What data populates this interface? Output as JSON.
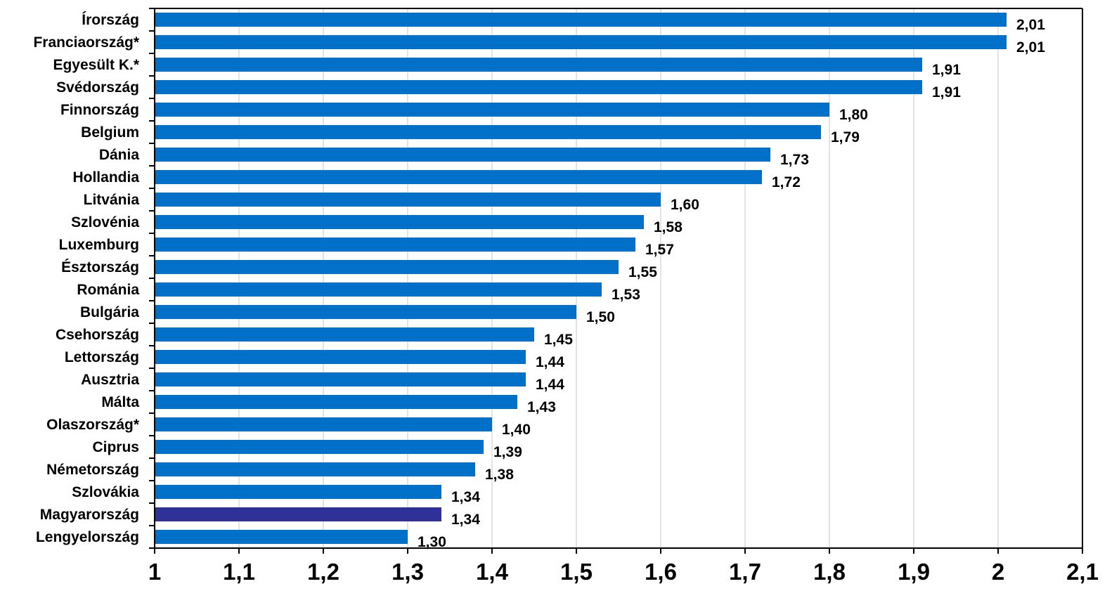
{
  "chart_data": {
    "type": "bar",
    "orientation": "horizontal",
    "title": "",
    "xlabel": "",
    "ylabel": "",
    "xlim": [
      1,
      2.1
    ],
    "grid": true,
    "legend": "none",
    "colors": {
      "bar": "#0070c8",
      "highlight": "#303099"
    },
    "highlight_category": "Magyarország",
    "categories": [
      "Írország",
      "Franciaország*",
      "Egyesült K.*",
      "Svédország",
      "Finnország",
      "Belgium",
      "Dánia",
      "Hollandia",
      "Litvánia",
      "Szlovénia",
      "Luxemburg",
      "Észtország",
      "Románia",
      "Bulgária",
      "Csehország",
      "Lettország",
      "Ausztria",
      "Málta",
      "Olaszország*",
      "Ciprus",
      "Németország",
      "Szlovákia",
      "Magyarország",
      "Lengyelország"
    ],
    "values": [
      2.01,
      2.01,
      1.91,
      1.91,
      1.8,
      1.79,
      1.73,
      1.72,
      1.6,
      1.58,
      1.57,
      1.55,
      1.53,
      1.5,
      1.45,
      1.44,
      1.44,
      1.43,
      1.4,
      1.39,
      1.38,
      1.34,
      1.34,
      1.3
    ],
    "value_labels": [
      "2,01",
      "2,01",
      "1,91",
      "1,91",
      "1,80",
      "1,79",
      "1,73",
      "1,72",
      "1,60",
      "1,58",
      "1,57",
      "1,55",
      "1,53",
      "1,50",
      "1,45",
      "1,44",
      "1,44",
      "1,43",
      "1,40",
      "1,39",
      "1,38",
      "1,34",
      "1,34",
      "1,30"
    ],
    "ticks": [
      1,
      1.1,
      1.2,
      1.3,
      1.4,
      1.5,
      1.6,
      1.7,
      1.8,
      1.9,
      2,
      2.1
    ],
    "tick_labels": [
      "1",
      "1,1",
      "1,2",
      "1,3",
      "1,4",
      "1,5",
      "1,6",
      "1,7",
      "1,8",
      "1,9",
      "2",
      "2,1"
    ]
  }
}
